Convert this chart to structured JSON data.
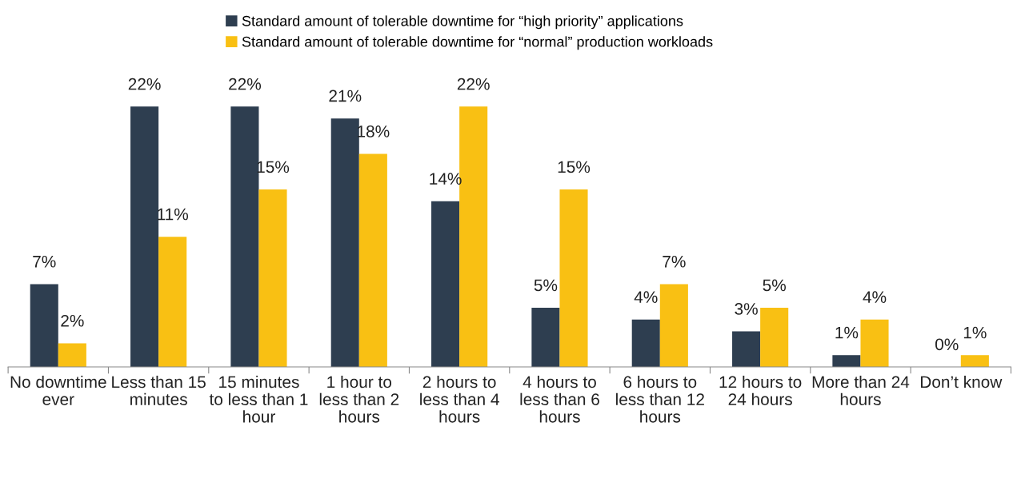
{
  "chart_data": {
    "type": "bar",
    "categories": [
      "No downtime ever",
      "Less than 15 minutes",
      "15 minutes to less than 1 hour",
      "1 hour to less than 2 hours",
      "2 hours to less than 4 hours",
      "4 hours to less than 6 hours",
      "6 hours to less than 12 hours",
      "12 hours to 24 hours",
      "More than 24 hours",
      "Don’t know"
    ],
    "series": [
      {
        "name": "Standard amount of tolerable downtime for “high priority” applications",
        "color": "#2e3e50",
        "values": [
          7,
          22,
          22,
          21,
          14,
          5,
          4,
          3,
          1,
          0
        ],
        "value_labels": [
          "7%",
          "22%",
          "22%",
          "21%",
          "14%",
          "5%",
          "4%",
          "3%",
          "1%",
          "0%"
        ]
      },
      {
        "name": "Standard amount of tolerable downtime for “normal” production workloads",
        "color": "#f9c013",
        "values": [
          2,
          11,
          15,
          18,
          22,
          15,
          7,
          5,
          4,
          1
        ],
        "value_labels": [
          "2%",
          "11%",
          "15%",
          "18%",
          "22%",
          "15%",
          "7%",
          "5%",
          "4%",
          "1%"
        ]
      }
    ],
    "legend": "top",
    "grid": false,
    "tick_labels": "x"
  }
}
